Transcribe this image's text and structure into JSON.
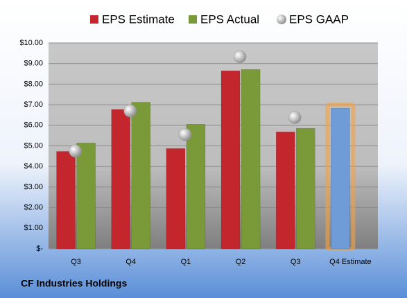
{
  "chart_data": {
    "type": "bar",
    "categories": [
      "Q3",
      "Q4",
      "Q1",
      "Q2",
      "Q3",
      "Q4 Estimate"
    ],
    "series": [
      {
        "name": "EPS Estimate",
        "color": "#c4262e",
        "values": [
          4.73,
          6.77,
          4.87,
          8.65,
          5.68,
          6.83
        ]
      },
      {
        "name": "EPS Actual",
        "color": "#7a9a3a",
        "values": [
          5.14,
          7.12,
          6.05,
          8.71,
          5.85,
          null
        ]
      },
      {
        "name": "EPS GAAP",
        "color": "#b8b8b8",
        "values": [
          4.75,
          6.7,
          5.55,
          9.33,
          6.38,
          null
        ],
        "marker": "circle"
      }
    ],
    "highlight_index": 5,
    "highlight_color": "#6f9bd6",
    "ylim": [
      0,
      10
    ],
    "yticks": [
      {
        "value": 0,
        "label": "$-"
      },
      {
        "value": 1,
        "label": "$1.00"
      },
      {
        "value": 2,
        "label": "$2.00"
      },
      {
        "value": 3,
        "label": "$3.00"
      },
      {
        "value": 4,
        "label": "$4.00"
      },
      {
        "value": 5,
        "label": "$5.00"
      },
      {
        "value": 6,
        "label": "$6.00"
      },
      {
        "value": 7,
        "label": "$7.00"
      },
      {
        "value": 8,
        "label": "$8.00"
      },
      {
        "value": 9,
        "label": "$9.00"
      },
      {
        "value": 10,
        "label": "$10.00"
      }
    ],
    "grid": true,
    "footnote": "CF Industries Holdings"
  }
}
